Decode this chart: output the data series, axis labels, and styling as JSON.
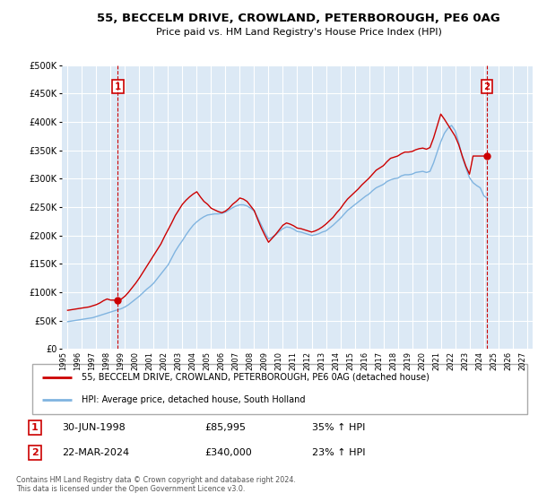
{
  "title": "55, BECCELM DRIVE, CROWLAND, PETERBOROUGH, PE6 0AG",
  "subtitle": "Price paid vs. HM Land Registry's House Price Index (HPI)",
  "bg_color": "#ffffff",
  "plot_bg_color": "#dce9f5",
  "grid_color": "#ffffff",
  "hpi_line_color": "#80b4e0",
  "price_line_color": "#cc0000",
  "dashed_line_color": "#cc0000",
  "ylim": [
    0,
    500000
  ],
  "yticks": [
    0,
    50000,
    100000,
    150000,
    200000,
    250000,
    300000,
    350000,
    400000,
    450000,
    500000
  ],
  "ytick_labels": [
    "£0",
    "£50K",
    "£100K",
    "£150K",
    "£200K",
    "£250K",
    "£300K",
    "£350K",
    "£400K",
    "£450K",
    "£500K"
  ],
  "xlabel_years": [
    "1995",
    "1996",
    "1997",
    "1998",
    "1999",
    "2000",
    "2001",
    "2002",
    "2003",
    "2004",
    "2005",
    "2006",
    "2007",
    "2008",
    "2009",
    "2010",
    "2011",
    "2012",
    "2013",
    "2014",
    "2015",
    "2016",
    "2017",
    "2018",
    "2019",
    "2020",
    "2021",
    "2022",
    "2023",
    "2024",
    "2025",
    "2026",
    "2027"
  ],
  "sale1_x": 1998.5,
  "sale1_price": 85995,
  "sale2_x": 2024.22,
  "sale2_price": 340000,
  "legend_line1": "55, BECCELM DRIVE, CROWLAND, PETERBOROUGH, PE6 0AG (detached house)",
  "legend_line2": "HPI: Average price, detached house, South Holland",
  "table_row1": [
    "1",
    "30-JUN-1998",
    "£85,995",
    "35% ↑ HPI"
  ],
  "table_row2": [
    "2",
    "22-MAR-2024",
    "£340,000",
    "23% ↑ HPI"
  ],
  "footer": "Contains HM Land Registry data © Crown copyright and database right 2024.\nThis data is licensed under the Open Government Licence v3.0.",
  "hpi_data_x": [
    1995.0,
    1995.25,
    1995.5,
    1995.75,
    1996.0,
    1996.25,
    1996.5,
    1996.75,
    1997.0,
    1997.25,
    1997.5,
    1997.75,
    1998.0,
    1998.25,
    1998.5,
    1998.75,
    1999.0,
    1999.25,
    1999.5,
    1999.75,
    2000.0,
    2000.25,
    2000.5,
    2000.75,
    2001.0,
    2001.25,
    2001.5,
    2001.75,
    2002.0,
    2002.25,
    2002.5,
    2002.75,
    2003.0,
    2003.25,
    2003.5,
    2003.75,
    2004.0,
    2004.25,
    2004.5,
    2004.75,
    2005.0,
    2005.25,
    2005.5,
    2005.75,
    2006.0,
    2006.25,
    2006.5,
    2006.75,
    2007.0,
    2007.25,
    2007.5,
    2007.75,
    2008.0,
    2008.25,
    2008.5,
    2008.75,
    2009.0,
    2009.25,
    2009.5,
    2009.75,
    2010.0,
    2010.25,
    2010.5,
    2010.75,
    2011.0,
    2011.25,
    2011.5,
    2011.75,
    2012.0,
    2012.25,
    2012.5,
    2012.75,
    2013.0,
    2013.25,
    2013.5,
    2013.75,
    2014.0,
    2014.25,
    2014.5,
    2014.75,
    2015.0,
    2015.25,
    2015.5,
    2015.75,
    2016.0,
    2016.25,
    2016.5,
    2016.75,
    2017.0,
    2017.25,
    2017.5,
    2017.75,
    2018.0,
    2018.25,
    2018.5,
    2018.75,
    2019.0,
    2019.25,
    2019.5,
    2019.75,
    2020.0,
    2020.25,
    2020.5,
    2020.75,
    2021.0,
    2021.25,
    2021.5,
    2021.75,
    2022.0,
    2022.25,
    2022.5,
    2022.75,
    2023.0,
    2023.25,
    2023.5,
    2023.75,
    2024.0,
    2024.25
  ],
  "hpi_data_y": [
    48000,
    49000,
    50000,
    51000,
    52000,
    53000,
    54000,
    55000,
    57000,
    59000,
    61000,
    63000,
    65000,
    67000,
    69000,
    71000,
    74000,
    78000,
    83000,
    88000,
    93000,
    99000,
    105000,
    110000,
    116000,
    124000,
    132000,
    140000,
    148000,
    160000,
    172000,
    182000,
    191000,
    201000,
    210000,
    218000,
    224000,
    229000,
    233000,
    236000,
    237000,
    238000,
    238000,
    239000,
    241000,
    245000,
    249000,
    252000,
    254000,
    254000,
    252000,
    248000,
    243000,
    231000,
    218000,
    205000,
    194000,
    197000,
    201000,
    207000,
    212000,
    215000,
    214000,
    211000,
    207000,
    206000,
    204000,
    202000,
    200000,
    201000,
    203000,
    206000,
    208000,
    213000,
    218000,
    224000,
    230000,
    237000,
    244000,
    249000,
    254000,
    259000,
    264000,
    269000,
    273000,
    279000,
    284000,
    287000,
    290000,
    295000,
    298000,
    300000,
    301000,
    305000,
    307000,
    307000,
    308000,
    311000,
    312000,
    313000,
    311000,
    313000,
    328000,
    347000,
    365000,
    380000,
    389000,
    394000,
    385000,
    364000,
    338000,
    319000,
    302000,
    293000,
    288000,
    284000,
    270000,
    265000
  ],
  "price_data_x": [
    1995.0,
    1995.25,
    1995.5,
    1995.75,
    1996.0,
    1996.25,
    1996.5,
    1996.75,
    1997.0,
    1997.25,
    1997.5,
    1997.75,
    1998.0,
    1998.25,
    1998.5,
    1998.75,
    1999.0,
    1999.25,
    1999.5,
    1999.75,
    2000.0,
    2000.25,
    2000.5,
    2000.75,
    2001.0,
    2001.25,
    2001.5,
    2001.75,
    2002.0,
    2002.25,
    2002.5,
    2002.75,
    2003.0,
    2003.25,
    2003.5,
    2003.75,
    2004.0,
    2004.25,
    2004.5,
    2004.75,
    2005.0,
    2005.25,
    2005.5,
    2005.75,
    2006.0,
    2006.25,
    2006.5,
    2006.75,
    2007.0,
    2007.25,
    2007.5,
    2007.75,
    2008.0,
    2008.25,
    2008.5,
    2008.75,
    2009.0,
    2009.25,
    2009.5,
    2009.75,
    2010.0,
    2010.25,
    2010.5,
    2010.75,
    2011.0,
    2011.25,
    2011.5,
    2011.75,
    2012.0,
    2012.25,
    2012.5,
    2012.75,
    2013.0,
    2013.25,
    2013.5,
    2013.75,
    2014.0,
    2014.25,
    2014.5,
    2014.75,
    2015.0,
    2015.25,
    2015.5,
    2015.75,
    2016.0,
    2016.25,
    2016.5,
    2016.75,
    2017.0,
    2017.25,
    2017.5,
    2017.75,
    2018.0,
    2018.25,
    2018.5,
    2018.75,
    2019.0,
    2019.25,
    2019.5,
    2019.75,
    2020.0,
    2020.25,
    2020.5,
    2020.75,
    2021.0,
    2021.25,
    2021.5,
    2021.75,
    2022.0,
    2022.25,
    2022.5,
    2022.75,
    2023.0,
    2023.25,
    2023.5,
    2023.75,
    2024.0,
    2024.25
  ],
  "price_data_y": [
    68000,
    69000,
    70000,
    71000,
    72000,
    73000,
    74000,
    76000,
    78000,
    81000,
    85000,
    88000,
    85995,
    86000,
    85995,
    88000,
    93000,
    100000,
    108000,
    116000,
    125000,
    135000,
    145000,
    155000,
    165000,
    175000,
    185000,
    198000,
    210000,
    222000,
    235000,
    245000,
    255000,
    262000,
    268000,
    273000,
    277000,
    268000,
    260000,
    255000,
    248000,
    245000,
    242000,
    240000,
    243000,
    248000,
    255000,
    260000,
    266000,
    264000,
    260000,
    252000,
    244000,
    228000,
    213000,
    200000,
    188000,
    195000,
    202000,
    210000,
    218000,
    222000,
    220000,
    217000,
    213000,
    212000,
    210000,
    208000,
    206000,
    208000,
    211000,
    215000,
    220000,
    226000,
    232000,
    240000,
    247000,
    256000,
    264000,
    270000,
    276000,
    282000,
    289000,
    295000,
    301000,
    308000,
    315000,
    319000,
    323000,
    330000,
    336000,
    338000,
    340000,
    344000,
    347000,
    347000,
    348000,
    351000,
    353000,
    354000,
    352000,
    355000,
    372000,
    393000,
    414000,
    405000,
    395000,
    385000,
    375000,
    360000,
    340000,
    322000,
    308000,
    340000,
    340000,
    340000,
    340000,
    340000
  ]
}
